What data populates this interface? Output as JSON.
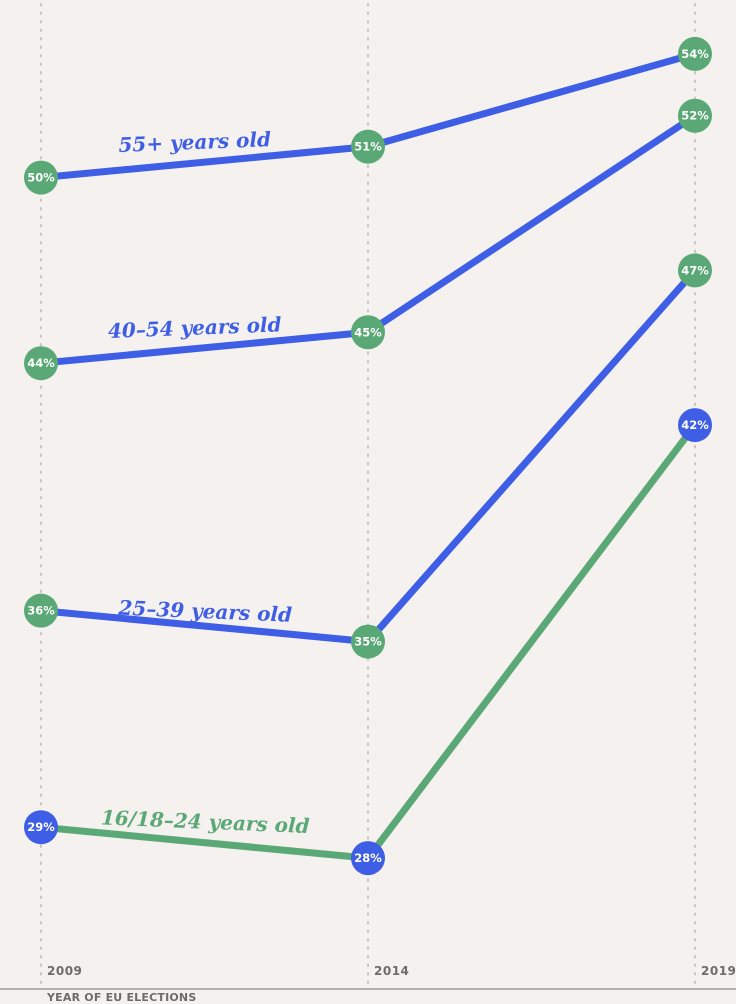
{
  "chart_data": {
    "type": "line",
    "xlabel": "YEAR OF EU ELECTIONS",
    "ylabel": "",
    "categories": [
      "2009",
      "2014",
      "2019"
    ],
    "ylim": [
      26,
      56
    ],
    "grid": true,
    "series": [
      {
        "name": "55+ years old",
        "values": [
          50,
          51,
          54
        ],
        "labels": [
          "50%",
          "51%",
          "54%"
        ],
        "color": "#3f5ee6",
        "marker_colors": [
          "#5aa875",
          "#5aa875",
          "#5aa875"
        ]
      },
      {
        "name": "40–54 years old",
        "values": [
          44,
          45,
          52
        ],
        "labels": [
          "44%",
          "45%",
          "52%"
        ],
        "color": "#3f5ee6",
        "marker_colors": [
          "#5aa875",
          "#5aa875",
          "#5aa875"
        ]
      },
      {
        "name": "25–39 years old",
        "values": [
          36,
          35,
          47
        ],
        "labels": [
          "36%",
          "35%",
          "47%"
        ],
        "color": "#3f5ee6",
        "marker_colors": [
          "#5aa875",
          "#5aa875",
          "#5aa875"
        ]
      },
      {
        "name": "16/18–24 years old",
        "values": [
          29,
          28,
          42
        ],
        "labels": [
          "29%",
          "28%",
          "42%"
        ],
        "color": "#5aa875",
        "marker_colors": [
          "#3f5ee6",
          "#3f5ee6",
          "#3f5ee6"
        ]
      }
    ]
  }
}
